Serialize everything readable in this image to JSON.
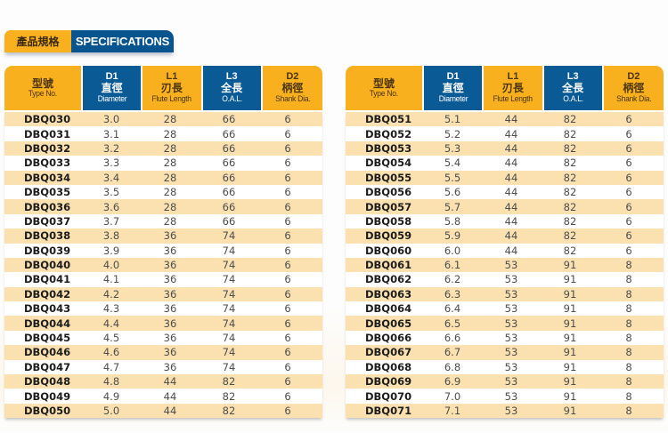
{
  "title": {
    "cn": "產品規格",
    "en": "SPECIFICATIONS"
  },
  "colors": {
    "accent_yellow": "#f8b01e",
    "accent_blue": "#0a5a96",
    "row_stripe": "#fbe1b0"
  },
  "columns": [
    {
      "code": "",
      "cn": "型號",
      "en": "Type No.",
      "style": "yellow"
    },
    {
      "code": "D1",
      "cn": "直徑",
      "en": "Diameter",
      "style": "blue"
    },
    {
      "code": "L1",
      "cn": "刃長",
      "en": "Flute Length",
      "style": "yellow"
    },
    {
      "code": "L3",
      "cn": "全長",
      "en": "O.A.L.",
      "style": "blue"
    },
    {
      "code": "D2",
      "cn": "柄徑",
      "en": "Shank Dia.",
      "style": "yellow"
    }
  ],
  "tables": [
    {
      "rows": [
        [
          "DBQ030",
          "3.0",
          "28",
          "66",
          "6"
        ],
        [
          "DBQ031",
          "3.1",
          "28",
          "66",
          "6"
        ],
        [
          "DBQ032",
          "3.2",
          "28",
          "66",
          "6"
        ],
        [
          "DBQ033",
          "3.3",
          "28",
          "66",
          "6"
        ],
        [
          "DBQ034",
          "3.4",
          "28",
          "66",
          "6"
        ],
        [
          "DBQ035",
          "3.5",
          "28",
          "66",
          "6"
        ],
        [
          "DBQ036",
          "3.6",
          "28",
          "66",
          "6"
        ],
        [
          "DBQ037",
          "3.7",
          "28",
          "66",
          "6"
        ],
        [
          "DBQ038",
          "3.8",
          "36",
          "74",
          "6"
        ],
        [
          "DBQ039",
          "3.9",
          "36",
          "74",
          "6"
        ],
        [
          "DBQ040",
          "4.0",
          "36",
          "74",
          "6"
        ],
        [
          "DBQ041",
          "4.1",
          "36",
          "74",
          "6"
        ],
        [
          "DBQ042",
          "4.2",
          "36",
          "74",
          "6"
        ],
        [
          "DBQ043",
          "4.3",
          "36",
          "74",
          "6"
        ],
        [
          "DBQ044",
          "4.4",
          "36",
          "74",
          "6"
        ],
        [
          "DBQ045",
          "4.5",
          "36",
          "74",
          "6"
        ],
        [
          "DBQ046",
          "4.6",
          "36",
          "74",
          "6"
        ],
        [
          "DBQ047",
          "4.7",
          "36",
          "74",
          "6"
        ],
        [
          "DBQ048",
          "4.8",
          "44",
          "82",
          "6"
        ],
        [
          "DBQ049",
          "4.9",
          "44",
          "82",
          "6"
        ],
        [
          "DBQ050",
          "5.0",
          "44",
          "82",
          "6"
        ]
      ]
    },
    {
      "rows": [
        [
          "DBQ051",
          "5.1",
          "44",
          "82",
          "6"
        ],
        [
          "DBQ052",
          "5.2",
          "44",
          "82",
          "6"
        ],
        [
          "DBQ053",
          "5.3",
          "44",
          "82",
          "6"
        ],
        [
          "DBQ054",
          "5.4",
          "44",
          "82",
          "6"
        ],
        [
          "DBQ055",
          "5.5",
          "44",
          "82",
          "6"
        ],
        [
          "DBQ056",
          "5.6",
          "44",
          "82",
          "6"
        ],
        [
          "DBQ057",
          "5.7",
          "44",
          "82",
          "6"
        ],
        [
          "DBQ058",
          "5.8",
          "44",
          "82",
          "6"
        ],
        [
          "DBQ059",
          "5.9",
          "44",
          "82",
          "6"
        ],
        [
          "DBQ060",
          "6.0",
          "44",
          "82",
          "6"
        ],
        [
          "DBQ061",
          "6.1",
          "53",
          "91",
          "8"
        ],
        [
          "DBQ062",
          "6.2",
          "53",
          "91",
          "8"
        ],
        [
          "DBQ063",
          "6.3",
          "53",
          "91",
          "8"
        ],
        [
          "DBQ064",
          "6.4",
          "53",
          "91",
          "8"
        ],
        [
          "DBQ065",
          "6.5",
          "53",
          "91",
          "8"
        ],
        [
          "DBQ066",
          "6.6",
          "53",
          "91",
          "8"
        ],
        [
          "DBQ067",
          "6.7",
          "53",
          "91",
          "8"
        ],
        [
          "DBQ068",
          "6.8",
          "53",
          "91",
          "8"
        ],
        [
          "DBQ069",
          "6.9",
          "53",
          "91",
          "8"
        ],
        [
          "DBQ070",
          "7.0",
          "53",
          "91",
          "8"
        ],
        [
          "DBQ071",
          "7.1",
          "53",
          "91",
          "8"
        ]
      ]
    }
  ]
}
